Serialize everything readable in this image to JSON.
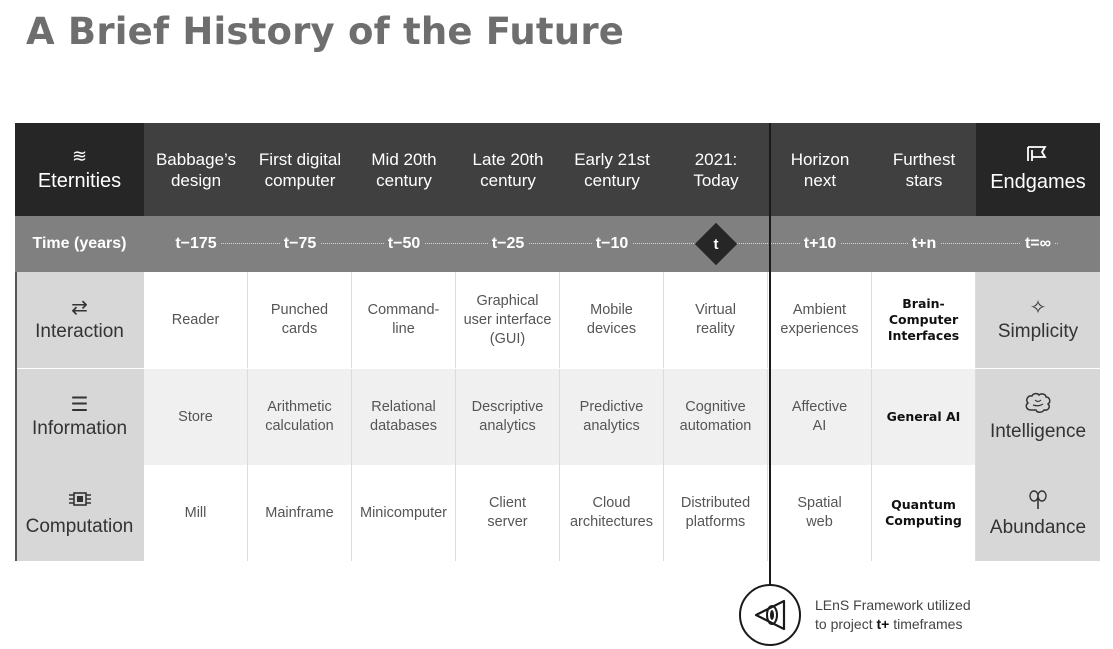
{
  "title": "A Brief History of the Future",
  "header": {
    "eternities": "Eternities",
    "endgames": "Endgames",
    "columns": [
      {
        "line1": "Babbage’s",
        "line2": "design"
      },
      {
        "line1": "First digital",
        "line2": "computer"
      },
      {
        "line1": "Mid 20th",
        "line2": "century"
      },
      {
        "line1": "Late 20th",
        "line2": "century"
      },
      {
        "line1": "Early 21st",
        "line2": "century"
      },
      {
        "line1": "2021:",
        "line2": "Today"
      },
      {
        "line1": "Horizon",
        "line2": "next"
      },
      {
        "line1": "Furthest",
        "line2": "stars"
      }
    ]
  },
  "time": {
    "label": "Time (years)",
    "values": [
      "t−175",
      "t−75",
      "t−50",
      "t−25",
      "t−10",
      "t",
      "t+10",
      "t+n",
      "t=∞"
    ]
  },
  "rows": [
    {
      "name": "Interaction",
      "endgame": "Simplicity",
      "icon": "arrows-icon",
      "cells": [
        [
          "Reader"
        ],
        [
          "Punched",
          "cards"
        ],
        [
          "Command-",
          "line"
        ],
        [
          "Graphical",
          "user interface",
          "(GUI)"
        ],
        [
          "Mobile",
          "devices"
        ],
        [
          "Virtual",
          "reality"
        ],
        [
          "Ambient",
          "experiences"
        ],
        [
          "Brain-",
          "Computer",
          "Interfaces"
        ]
      ]
    },
    {
      "name": "Information",
      "endgame": "Intelligence",
      "icon": "lines-icon",
      "cells": [
        [
          "Store"
        ],
        [
          "Arithmetic",
          "calculation"
        ],
        [
          "Relational",
          "databases"
        ],
        [
          "Descriptive",
          "analytics"
        ],
        [
          "Predictive",
          "analytics"
        ],
        [
          "Cognitive",
          "automation"
        ],
        [
          "Affective",
          "AI"
        ],
        [
          "General AI"
        ]
      ]
    },
    {
      "name": "Computation",
      "endgame": "Abundance",
      "icon": "chip-icon",
      "cells": [
        [
          "Mill"
        ],
        [
          "Mainframe"
        ],
        [
          "Minicomputer"
        ],
        [
          "Client",
          "server"
        ],
        [
          "Cloud",
          "architectures"
        ],
        [
          "Distributed",
          "platforms"
        ],
        [
          "Spatial",
          "web"
        ],
        [
          "Quantum",
          "Computing"
        ]
      ]
    }
  ],
  "lens": {
    "line1": "LEnS Framework utilized",
    "line2_prefix": "to project ",
    "line2_bold": "t+",
    "line2_suffix": " timeframes"
  },
  "colors": {
    "header_bg": "#404040",
    "side_bg": "#262626",
    "time_bg": "#808080",
    "side_body_bg": "#d7d7d7",
    "title": "#6e6e6e"
  }
}
